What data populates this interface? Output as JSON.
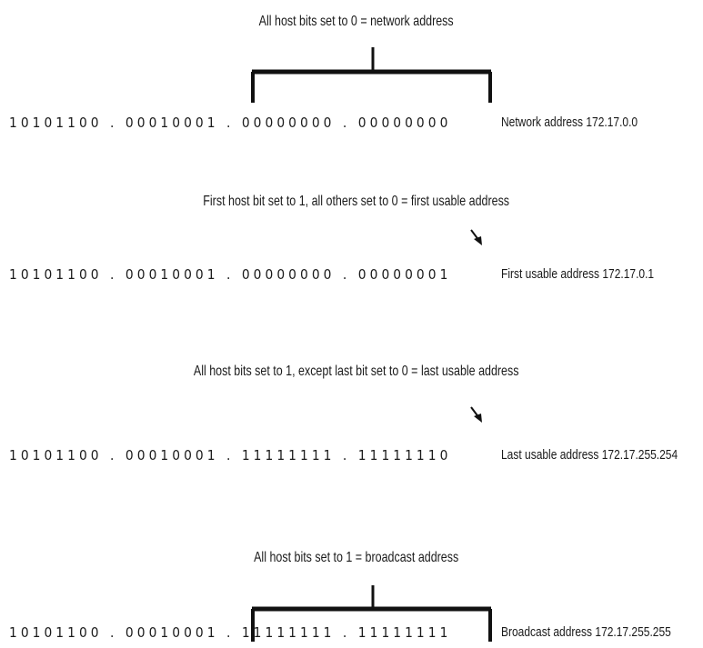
{
  "rows": [
    {
      "note": "All host bits set to 0 = network address",
      "bits": "10101100 . 00010001 . 00000000 . 00000000",
      "label": "Network address 172.17.0.0",
      "marker": "bracket"
    },
    {
      "note": "First host bit set to 1, all others set to 0 = first usable address",
      "bits": "10101100 . 00010001 . 00000000 . 00000001",
      "label": "First usable address 172.17.0.1",
      "marker": "arrow"
    },
    {
      "note": "All host bits set to 1, except last bit set to 0 = last usable address",
      "bits": "10101100 . 00010001 . 11111111 . 11111110",
      "label": "Last usable address 172.17.255.254",
      "marker": "arrow"
    },
    {
      "note": "All host bits set to 1 = broadcast address",
      "bits": "10101100 . 00010001 . 11111111 . 11111111",
      "label": "Broadcast address 172.17.255.255",
      "marker": "bracket"
    }
  ],
  "colors": {
    "text": "#1a1a1a",
    "line": "#111111"
  }
}
